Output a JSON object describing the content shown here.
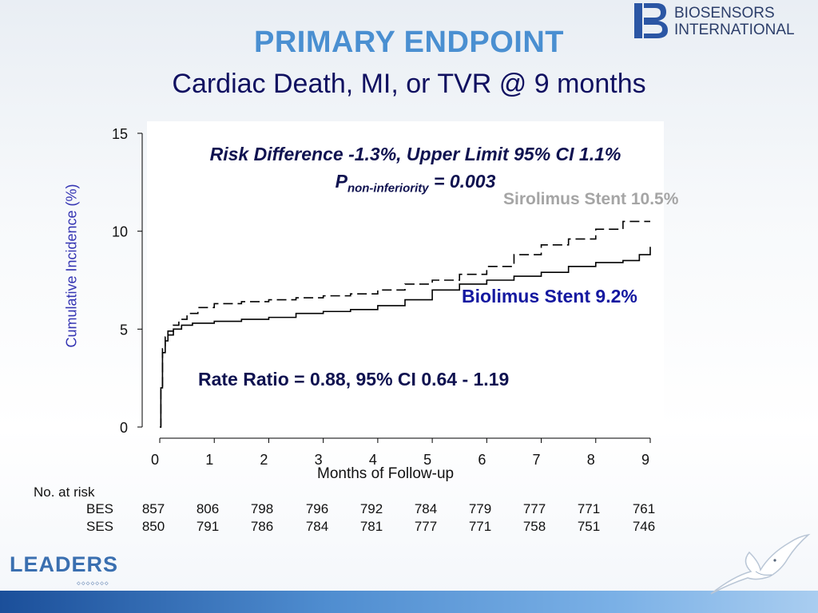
{
  "slide": {
    "title": "PRIMARY ENDPOINT",
    "subtitle": "Cardiac Death, MI, or TVR @ 9 months",
    "logo_line1": "BIOSENSORS",
    "logo_line2": "INTERNATIONAL",
    "footer_logo": "LEADERS",
    "footer_logo_sub": "◇◇◇◇◇◇◇"
  },
  "annotations": {
    "risk_difference": "Risk Difference -1.3%, Upper Limit 95% CI 1.1%",
    "p_prefix": "P",
    "p_subscript": "non-inferiority",
    "p_value": " = 0.003",
    "ses_label": "Sirolimus Stent 10.5%",
    "bes_label": "Biolimus Stent 9.2%",
    "rate_ratio": "Rate Ratio = 0.88, 95% CI 0.64 - 1.19"
  },
  "risk_table": {
    "header": "No. at risk",
    "bes_label": "BES",
    "ses_label": "SES",
    "bes": [
      "857",
      "806",
      "798",
      "796",
      "792",
      "784",
      "779",
      "777",
      "771",
      "761"
    ],
    "ses": [
      "850",
      "791",
      "786",
      "784",
      "781",
      "777",
      "771",
      "758",
      "751",
      "746"
    ]
  },
  "chart_data": {
    "type": "line",
    "xlabel": "Months of Follow-up",
    "ylabel": "Cumulative Incidence (%)",
    "xlim": [
      0,
      9
    ],
    "ylim": [
      0,
      15
    ],
    "xticks": [
      "0",
      "1",
      "2",
      "3",
      "4",
      "5",
      "6",
      "7",
      "8",
      "9"
    ],
    "yticks": [
      "0",
      "5",
      "10",
      "15"
    ],
    "grid": false,
    "series": [
      {
        "name": "Sirolimus Stent 10.5%",
        "style": "dashed",
        "color": "#000000",
        "x": [
          0,
          0.02,
          0.05,
          0.1,
          0.15,
          0.25,
          0.35,
          0.5,
          0.7,
          1.0,
          1.5,
          2.0,
          2.5,
          3.0,
          3.5,
          4.0,
          4.5,
          5.0,
          5.5,
          6.0,
          6.5,
          7.0,
          7.5,
          8.0,
          8.5,
          9.0
        ],
        "y": [
          0,
          2.0,
          4.0,
          4.6,
          4.9,
          5.2,
          5.5,
          5.8,
          6.1,
          6.3,
          6.4,
          6.5,
          6.6,
          6.7,
          6.8,
          7.0,
          7.3,
          7.5,
          7.8,
          8.2,
          8.8,
          9.3,
          9.6,
          10.1,
          10.5,
          10.5
        ]
      },
      {
        "name": "Biolimus Stent 9.2%",
        "style": "solid",
        "color": "#000000",
        "x": [
          0,
          0.02,
          0.05,
          0.1,
          0.15,
          0.25,
          0.4,
          0.6,
          1.0,
          1.5,
          2.0,
          2.5,
          3.0,
          3.5,
          4.0,
          4.5,
          5.0,
          5.5,
          6.0,
          6.5,
          7.0,
          7.5,
          8.0,
          8.5,
          8.8,
          9.0
        ],
        "y": [
          0,
          2.0,
          3.8,
          4.4,
          4.7,
          5.0,
          5.2,
          5.3,
          5.4,
          5.5,
          5.6,
          5.8,
          5.9,
          6.0,
          6.2,
          6.5,
          7.0,
          7.3,
          7.5,
          7.7,
          7.9,
          8.2,
          8.4,
          8.5,
          8.8,
          9.2
        ]
      }
    ]
  }
}
